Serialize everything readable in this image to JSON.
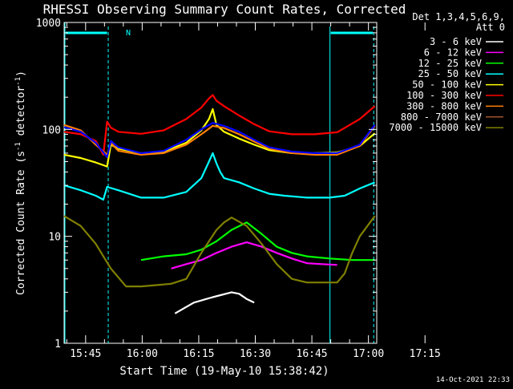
{
  "chart_data": {
    "type": "line",
    "title": "RHESSI Observing Summary Count Rates, Corrected",
    "xlabel": "Start Time (19-May-10 15:38:42)",
    "ylabel_main": "Corrected Count Rate (s",
    "ylabel_sup1": "-1",
    "ylabel_mid": " detector",
    "ylabel_sup2": "-1",
    "ylabel_end": ")",
    "y_scale": "log",
    "ylim": [
      1,
      1000
    ],
    "xlim_minutes": [
      15.6,
      98.5
    ],
    "x_ticks": [
      {
        "label": "15:45",
        "min": 21.3
      },
      {
        "label": "16:00",
        "min": 36.3
      },
      {
        "label": "16:15",
        "min": 51.3
      },
      {
        "label": "16:30",
        "min": 66.3
      },
      {
        "label": "16:45",
        "min": 81.3
      },
      {
        "label": "17:00",
        "min": 96.3
      },
      {
        "label": "17:15",
        "min": 111.3
      }
    ],
    "y_ticks": [
      {
        "label": "1",
        "value": 1
      },
      {
        "label": "10",
        "value": 10
      },
      {
        "label": "100",
        "value": 100
      },
      {
        "label": "1000",
        "value": 1000
      }
    ],
    "legend_header": [
      "Det 1,3,4,5,6,9,",
      "Att 0"
    ],
    "annotations": {
      "night_label": "N",
      "timestamp": "14-Oct-2021 22:33"
    },
    "series": [
      {
        "name": "3 - 6 keV",
        "color": "#ffffff",
        "t": [
          45,
          50,
          55,
          60,
          62,
          64,
          66
        ],
        "v": [
          1.9,
          2.4,
          2.7,
          3.0,
          2.9,
          2.6,
          2.4
        ]
      },
      {
        "name": "6 - 12 keV",
        "color": "#ff00ff",
        "t": [
          44,
          48,
          52,
          56,
          60,
          64,
          68,
          72,
          76,
          80,
          84,
          88
        ],
        "v": [
          5.0,
          5.5,
          6.0,
          7.0,
          8.0,
          8.8,
          8.0,
          7.0,
          6.2,
          5.6,
          5.5,
          5.4
        ]
      },
      {
        "name": "12 - 25 keV",
        "color": "#00ff00",
        "t": [
          36,
          42,
          48,
          52,
          56,
          60,
          64,
          68,
          72,
          76,
          80,
          86,
          92,
          98
        ],
        "v": [
          6.0,
          6.5,
          6.8,
          7.5,
          9.0,
          11.5,
          13.5,
          10.5,
          8.0,
          7.0,
          6.5,
          6.2,
          6.0,
          6.0
        ]
      },
      {
        "name": "25 - 50 keV",
        "color": "#00ffff",
        "t": [
          15.6,
          20,
          24,
          26,
          27,
          30,
          36,
          42,
          48,
          52,
          54,
          55,
          56,
          57,
          58,
          62,
          66,
          70,
          74,
          80,
          86,
          90,
          94,
          98
        ],
        "v": [
          30,
          27,
          24,
          22,
          29,
          27,
          23,
          23,
          26,
          35,
          50,
          60,
          48,
          40,
          35,
          32,
          28,
          25,
          24,
          23,
          23,
          24,
          28,
          32
        ]
      },
      {
        "name": "50 - 100 keV",
        "color": "#ffff00",
        "t": [
          15.6,
          20,
          24,
          27,
          28,
          30,
          36,
          42,
          48,
          52,
          54,
          55,
          56,
          58,
          62,
          66,
          70,
          76,
          82,
          88,
          94,
          98
        ],
        "v": [
          58,
          54,
          49,
          45,
          72,
          66,
          60,
          62,
          75,
          98,
          125,
          155,
          110,
          95,
          82,
          72,
          64,
          60,
          60,
          61,
          70,
          92
        ]
      },
      {
        "name": "100 - 300 keV",
        "color": "#ff0000",
        "t": [
          15.6,
          20,
          24,
          26,
          27,
          28,
          30,
          36,
          42,
          48,
          52,
          54,
          55,
          56,
          58,
          62,
          66,
          70,
          76,
          82,
          88,
          94,
          98
        ],
        "v": [
          95,
          90,
          78,
          58,
          118,
          104,
          95,
          91,
          98,
          125,
          160,
          195,
          210,
          185,
          165,
          135,
          112,
          96,
          90,
          90,
          94,
          125,
          165
        ]
      },
      {
        "name": "300 - 800 keV",
        "color": "#ff7f00",
        "t": [
          15.6,
          20,
          24,
          27,
          28,
          30,
          36,
          42,
          48,
          52,
          55,
          58,
          62,
          66,
          70,
          76,
          82,
          88,
          94,
          98
        ],
        "v": [
          110,
          98,
          72,
          58,
          75,
          63,
          58,
          60,
          72,
          90,
          108,
          103,
          90,
          77,
          66,
          60,
          58,
          58,
          70,
          108
        ]
      },
      {
        "name": "800 - 7000 keV",
        "color": "#a0522d",
        "t": [],
        "v": []
      },
      {
        "name": "7000 - 15000 keV",
        "color": "#808000",
        "t": [
          15.6,
          20,
          24,
          28,
          32,
          36,
          40,
          44,
          48,
          52,
          56,
          58,
          60,
          64,
          68,
          72,
          76,
          80,
          84,
          88,
          90,
          92,
          94,
          98
        ],
        "v": [
          15.5,
          12.5,
          8.5,
          5.0,
          3.4,
          3.4,
          3.5,
          3.6,
          4.0,
          7.0,
          11.5,
          13.5,
          15,
          12.5,
          8.5,
          5.5,
          4.0,
          3.7,
          3.7,
          3.7,
          4.5,
          7.0,
          10.0,
          15.5
        ]
      }
    ],
    "blue_series": {
      "color": "#0000ff",
      "t": [
        15.6,
        20,
        24,
        27,
        28,
        30,
        36,
        42,
        48,
        52,
        55,
        58,
        62,
        66,
        70,
        76,
        82,
        88,
        94,
        98
      ],
      "v": [
        105,
        95,
        75,
        55,
        78,
        68,
        60,
        63,
        80,
        100,
        115,
        108,
        95,
        80,
        68,
        62,
        60,
        60,
        72,
        110
      ]
    }
  }
}
